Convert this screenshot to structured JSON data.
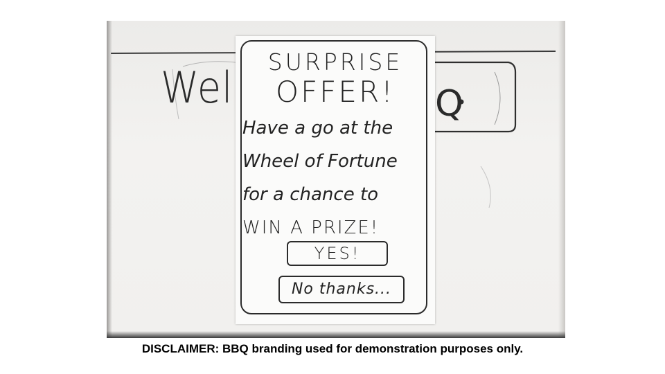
{
  "background_sketch": {
    "welcome_fragment": "Wel",
    "logo_fragment": "Q"
  },
  "popup": {
    "title_line_1": "SURPRISE",
    "title_line_2": "OFFER!",
    "body_lines": [
      "Have a go at the",
      "Wheel of Fortune",
      "for a chance to",
      "WIN A PRIZE!"
    ],
    "accept_button_label": "YES!",
    "decline_button_label": "No thanks..."
  },
  "disclaimer": "DISCLAIMER: BBQ branding used for demonstration purposes only.",
  "colors": {
    "ink": "#222222",
    "paper": "#fbfbfa",
    "whiteboard": "#f1f0ee"
  }
}
